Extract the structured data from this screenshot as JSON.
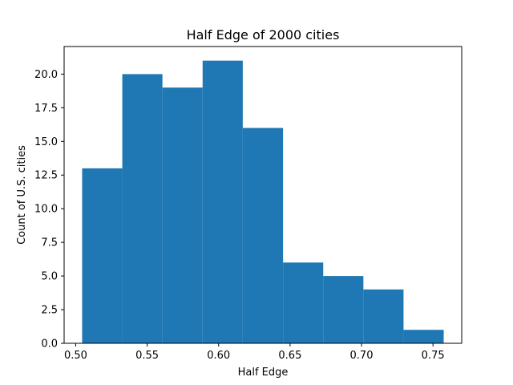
{
  "chart_data": {
    "type": "bar",
    "title": "Half Edge of 2000 cities",
    "xlabel": "Half Edge",
    "ylabel": "Count of U.S. cities",
    "bins": [
      {
        "x0": 0.5045,
        "x1": 0.5326,
        "count": 13
      },
      {
        "x0": 0.5326,
        "x1": 0.5607,
        "count": 20
      },
      {
        "x0": 0.5607,
        "x1": 0.5888,
        "count": 19
      },
      {
        "x0": 0.5888,
        "x1": 0.6169,
        "count": 21
      },
      {
        "x0": 0.6169,
        "x1": 0.6451,
        "count": 16
      },
      {
        "x0": 0.6451,
        "x1": 0.6732,
        "count": 6
      },
      {
        "x0": 0.6732,
        "x1": 0.7013,
        "count": 5
      },
      {
        "x0": 0.7013,
        "x1": 0.7294,
        "count": 4
      },
      {
        "x0": 0.7294,
        "x1": 0.7575,
        "count": 1
      }
    ],
    "xlim": [
      0.4919,
      0.7701
    ],
    "ylim": [
      0,
      22.05
    ],
    "x_ticks": [
      {
        "value": 0.5,
        "label": "0.50"
      },
      {
        "value": 0.55,
        "label": "0.55"
      },
      {
        "value": 0.6,
        "label": "0.60"
      },
      {
        "value": 0.65,
        "label": "0.65"
      },
      {
        "value": 0.7,
        "label": "0.70"
      },
      {
        "value": 0.75,
        "label": "0.75"
      }
    ],
    "y_ticks": [
      {
        "value": 0,
        "label": "0.0"
      },
      {
        "value": 2.5,
        "label": "2.5"
      },
      {
        "value": 5,
        "label": "5.0"
      },
      {
        "value": 7.5,
        "label": "7.5"
      },
      {
        "value": 10,
        "label": "10.0"
      },
      {
        "value": 12.5,
        "label": "12.5"
      },
      {
        "value": 15,
        "label": "15.0"
      },
      {
        "value": 17.5,
        "label": "17.5"
      },
      {
        "value": 20,
        "label": "20.0"
      }
    ],
    "bar_color": "#1f77b4",
    "grid": false,
    "legend": "none"
  }
}
